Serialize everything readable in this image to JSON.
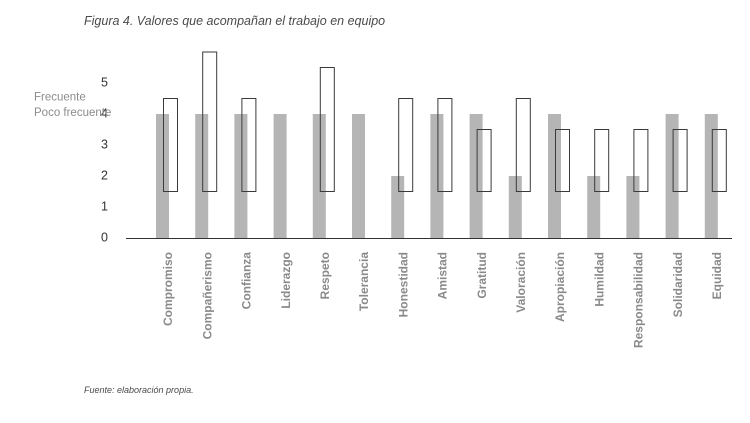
{
  "figure": {
    "title": "Figura 4. Valores que acompañan el trabajo en equipo",
    "source": "Fuente: elaboración propia."
  },
  "colors": {
    "solid_bar": "#b5b5b5",
    "outline_bar_stroke": "#3a3a3a",
    "axis": "#333333",
    "tick_text": "#333333",
    "legend_text": "#8c8c8c",
    "category_text": "#8a8a8a"
  },
  "chart_data": {
    "type": "bar",
    "title": "",
    "xlabel": "",
    "ylabel": "",
    "ylim": [
      0,
      5.5
    ],
    "y_ticks": [
      0,
      1,
      2,
      3,
      4,
      5
    ],
    "y_annotations": [
      {
        "label": "Frecuente",
        "value": 4.5
      },
      {
        "label": "Poco frecuente",
        "value": 4
      }
    ],
    "categories": [
      "Compromiso",
      "Compañerismo",
      "Confianza",
      "Liderazgo",
      "Respeto",
      "Tolerancia",
      "Honestidad",
      "Amistad",
      "Gratitud",
      "Valoración",
      "Apropiación",
      "Humildad",
      "Responsabilidad",
      "Solidaridad",
      "Equidad"
    ],
    "series": [
      {
        "style": "solid",
        "values": [
          4,
          4,
          4,
          4,
          4,
          4,
          2,
          4,
          4,
          2,
          4,
          2,
          2,
          4,
          4
        ]
      },
      {
        "style": "outline",
        "ranges": [
          [
            1.5,
            4.5
          ],
          [
            1.5,
            6
          ],
          [
            1.5,
            4.5
          ],
          null,
          [
            1.5,
            5.5
          ],
          null,
          [
            1.5,
            4.5
          ],
          [
            1.5,
            4.5
          ],
          [
            1.5,
            3.5
          ],
          [
            1.5,
            4.5
          ],
          [
            1.5,
            3.5
          ],
          [
            1.5,
            3.5
          ],
          [
            1.5,
            3.5
          ],
          [
            1.5,
            3.5
          ],
          [
            1.5,
            3.5
          ]
        ]
      }
    ],
    "grid": false,
    "legend": "none"
  }
}
